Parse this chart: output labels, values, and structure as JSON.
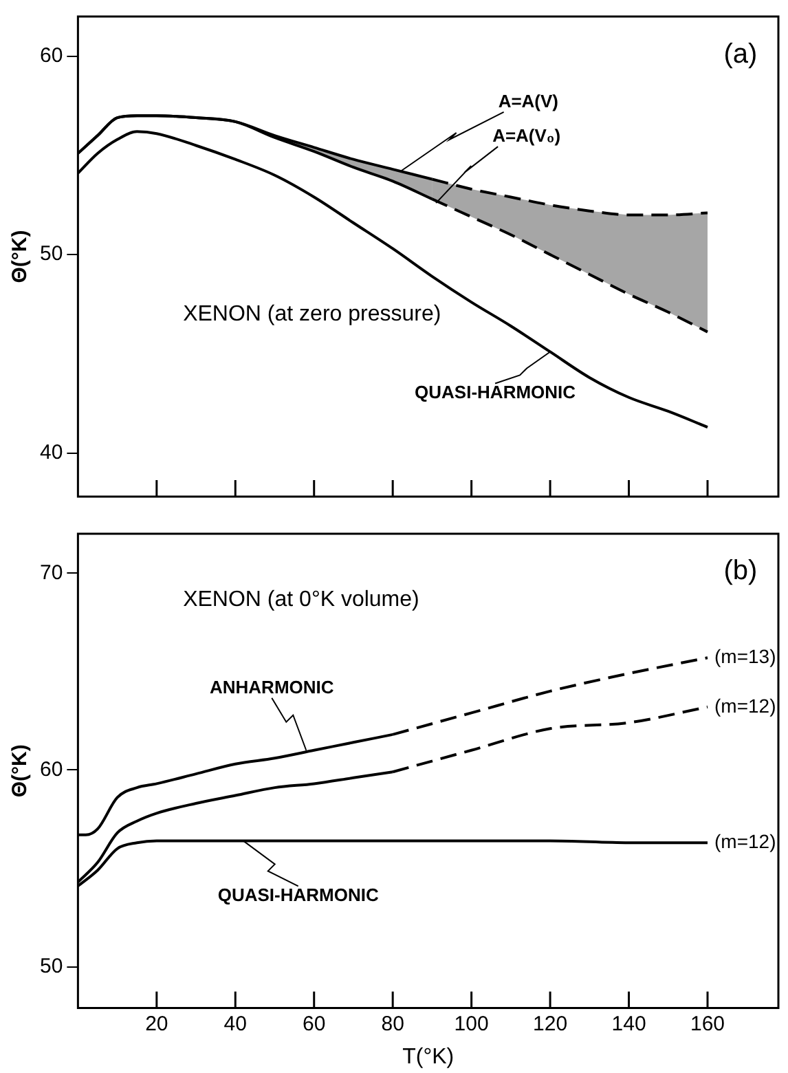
{
  "chart_data": [
    {
      "type": "line",
      "ylabel": "Θ(°K)",
      "xlim": [
        0,
        178
      ],
      "xticks": [
        {
          "value": 20,
          "label": null
        },
        {
          "value": 40,
          "label": null
        },
        {
          "value": 60,
          "label": null
        },
        {
          "value": 80,
          "label": null
        },
        {
          "value": 100,
          "label": null
        },
        {
          "value": 120,
          "label": null
        },
        {
          "value": 140,
          "label": null
        },
        {
          "value": 160,
          "label": null
        }
      ],
      "ylim": [
        37.8,
        62
      ],
      "yticks": [
        40,
        50,
        60
      ],
      "tick_labels": "y",
      "grid": false,
      "legend": false,
      "marker": "none",
      "series": [
        {
          "color": "#000000",
          "line_style": "solid",
          "x": [
            0,
            5,
            10,
            15,
            20,
            30,
            40,
            50,
            60,
            70,
            80,
            90
          ],
          "values": [
            55.1,
            56.0,
            56.9,
            57.0,
            57.0,
            56.9,
            56.7,
            56.0,
            55.4,
            54.8,
            54.3,
            53.8
          ],
          "lower": [
            null,
            null,
            null,
            null,
            null,
            null,
            56.7,
            55.9,
            55.2,
            54.4,
            53.7,
            52.8
          ],
          "upper": [
            null,
            null,
            null,
            null,
            null,
            null,
            56.7,
            56.0,
            55.4,
            54.8,
            54.3,
            53.8
          ]
        },
        {
          "color": "#000000",
          "line_style": "dashed",
          "x": [
            90,
            100,
            110,
            120,
            130,
            140,
            150,
            160
          ],
          "values": [
            53.8,
            53.3,
            52.9,
            52.5,
            52.2,
            52.0,
            52.0,
            52.1
          ],
          "lower": [
            52.8,
            51.9,
            51.0,
            50.0,
            49.0,
            48.0,
            47.1,
            46.1
          ],
          "upper": [
            53.8,
            53.3,
            52.9,
            52.5,
            52.2,
            52.0,
            52.0,
            52.1
          ]
        },
        {
          "color": "#000000",
          "line_style": "solid",
          "x": [
            0,
            5,
            10,
            15,
            20,
            30,
            40,
            50,
            60,
            70,
            80,
            90
          ],
          "values": [
            55.1,
            56.0,
            56.9,
            57.0,
            57.0,
            56.9,
            56.7,
            55.9,
            55.2,
            54.4,
            53.7,
            52.8
          ]
        },
        {
          "color": "#000000",
          "line_style": "dashed",
          "x": [
            90,
            100,
            110,
            120,
            130,
            140,
            150,
            160
          ],
          "values": [
            52.8,
            51.9,
            51.0,
            50.0,
            49.0,
            48.0,
            47.1,
            46.1
          ]
        },
        {
          "color": "#000000",
          "line_style": "solid",
          "x": [
            0,
            5,
            10,
            15,
            20,
            30,
            40,
            50,
            60,
            70,
            80,
            90,
            100,
            110,
            120,
            130,
            140,
            150,
            160
          ],
          "values": [
            54.1,
            55.1,
            55.8,
            56.2,
            56.1,
            55.5,
            54.8,
            54.0,
            52.9,
            51.6,
            50.3,
            48.9,
            47.6,
            46.4,
            45.1,
            43.8,
            42.8,
            42.1,
            41.3
          ]
        }
      ],
      "annotations": [
        "(a)",
        "XENON (at zero pressure)",
        {
          "text": "A=A(V)",
          "x": 82,
          "y": 54.2
        },
        {
          "text": "A=A(V₀)",
          "x": 91,
          "y": 52.6
        },
        {
          "text": "QUASI-HARMONIC",
          "x": 120,
          "y": 45.1
        }
      ]
    },
    {
      "type": "line",
      "xlabel": "T(°K)",
      "ylabel": "Θ(°K)",
      "xlim": [
        0,
        178
      ],
      "xticks": [
        20,
        40,
        60,
        80,
        100,
        120,
        140,
        160
      ],
      "ylim": [
        47.9,
        72
      ],
      "yticks": [
        50,
        60,
        70
      ],
      "grid": false,
      "legend": false,
      "marker": "none",
      "series": [
        {
          "color": "#000000",
          "line_style": "solid",
          "x": [
            0,
            2,
            5,
            10,
            15,
            20,
            30,
            40,
            50,
            60,
            70,
            80
          ],
          "values": [
            56.7,
            56.7,
            57.0,
            58.6,
            59.1,
            59.3,
            59.8,
            60.3,
            60.6,
            61.0,
            61.4,
            61.8
          ]
        },
        {
          "color": "#000000",
          "line_style": "dashed",
          "x": [
            80,
            100,
            120,
            140,
            160
          ],
          "values": [
            61.8,
            62.9,
            64.0,
            64.9,
            65.7
          ]
        },
        {
          "color": "#000000",
          "line_style": "solid",
          "x": [
            0,
            5,
            10,
            15,
            20,
            30,
            40,
            50,
            60,
            70,
            80
          ],
          "values": [
            54.3,
            55.3,
            56.8,
            57.4,
            57.8,
            58.3,
            58.7,
            59.1,
            59.3,
            59.6,
            59.9
          ]
        },
        {
          "color": "#000000",
          "line_style": "dashed",
          "x": [
            80,
            100,
            120,
            140,
            160
          ],
          "values": [
            59.9,
            61.0,
            62.1,
            62.4,
            63.2
          ]
        },
        {
          "color": "#000000",
          "line_style": "solid",
          "x": [
            0,
            5,
            10,
            15,
            20,
            40,
            60,
            80,
            100,
            120,
            140,
            160
          ],
          "values": [
            54.1,
            54.9,
            56.0,
            56.3,
            56.4,
            56.4,
            56.4,
            56.4,
            56.4,
            56.4,
            56.3,
            56.3
          ]
        }
      ],
      "annotations": [
        "(b)",
        "XENON (at 0°K volume)",
        {
          "text": "ANHARMONIC",
          "x": 58,
          "y": 61.0
        },
        {
          "text": "QUASI-HARMONIC",
          "x": 42,
          "y": 56.4
        },
        {
          "text": "(m=13)",
          "x": 160,
          "y": 65.7
        },
        {
          "text": "(m=12)",
          "x": 160,
          "y": 63.2
        },
        {
          "text": "(m=12)",
          "x": 160,
          "y": 56.3
        }
      ]
    }
  ]
}
